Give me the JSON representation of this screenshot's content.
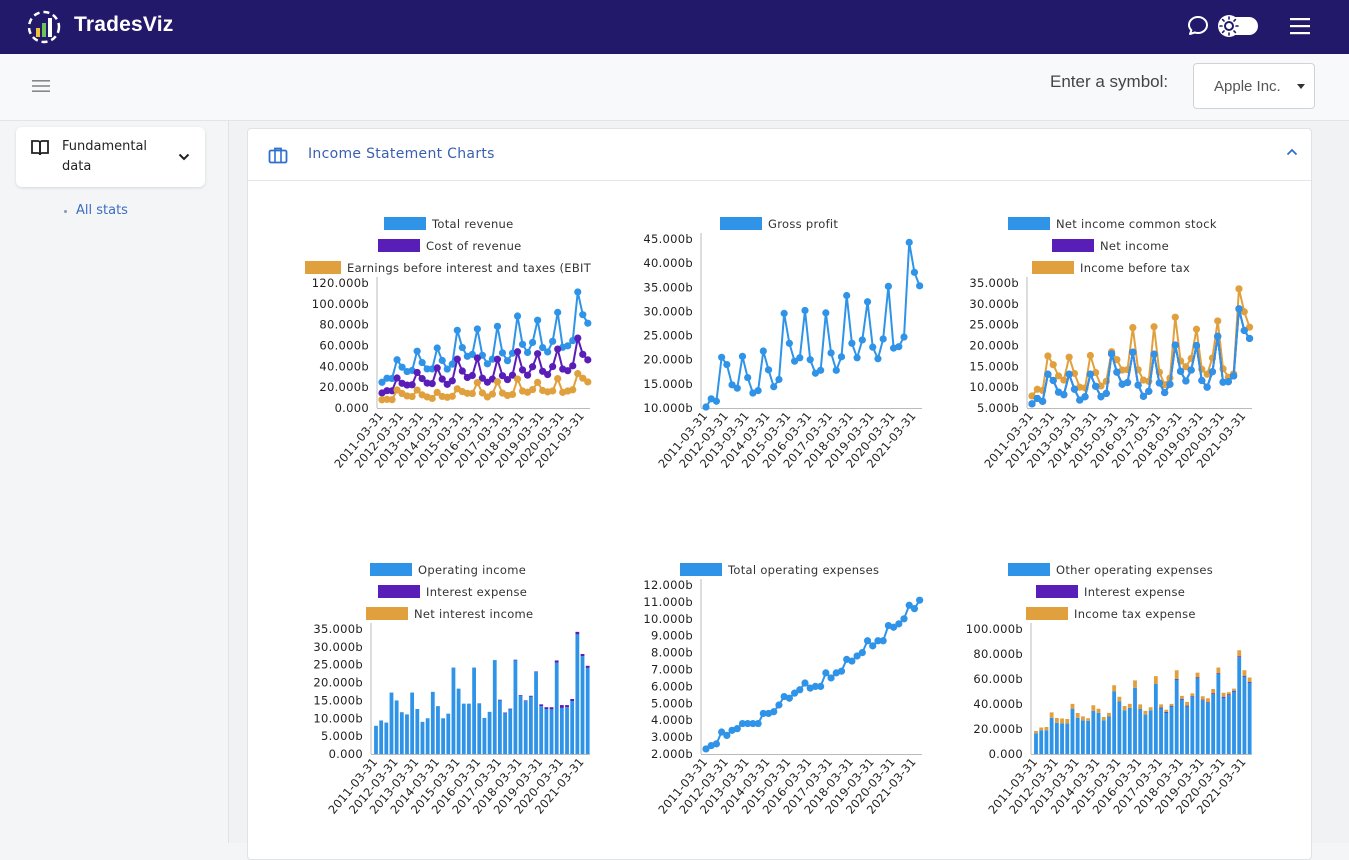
{
  "app": {
    "name": "TradesViz"
  },
  "header": {
    "symbol_label": "Enter a symbol:",
    "symbol_value": "Apple Inc."
  },
  "sidebar": {
    "section_label": "Fundamental data",
    "link": "All stats"
  },
  "panel": {
    "title": "Income Statement Charts"
  },
  "colors": {
    "blue": "#2f94e8",
    "purple": "#5a1eb8",
    "orange": "#e0a03e",
    "navy": "#23196b"
  },
  "chart_data": [
    {
      "type": "line",
      "legend": [
        "Total revenue",
        "Cost of revenue",
        "Earnings before interest and taxes (EBIT"
      ],
      "yticks": [
        "0.000",
        "20.000b",
        "40.000b",
        "60.000b",
        "80.000b",
        "100.000b",
        "120.000b"
      ],
      "ylim": [
        0,
        120
      ],
      "xticks": [
        "2011-03-31",
        "2012-03-31",
        "2013-03-31",
        "2014-03-31",
        "2015-03-31",
        "2016-03-31",
        "2017-03-31",
        "2018-03-31",
        "2019-03-31",
        "2020-03-31",
        "2021-03-31"
      ],
      "series": [
        {
          "name": "Total revenue",
          "values": [
            24.7,
            28.6,
            28.3,
            46.3,
            39.2,
            35.0,
            36.0,
            54.5,
            43.6,
            37.5,
            37.5,
            57.6,
            45.6,
            37.4,
            42.1,
            74.6,
            58.0,
            49.6,
            51.5,
            75.9,
            50.6,
            42.4,
            46.9,
            78.4,
            52.9,
            45.4,
            52.6,
            88.3,
            61.1,
            53.3,
            62.9,
            84.3,
            58.0,
            53.8,
            64.0,
            91.8,
            58.3,
            59.7,
            64.7,
            111.4,
            89.6,
            81.4
          ]
        },
        {
          "name": "Cost of revenue",
          "values": [
            14.4,
            16.6,
            16.5,
            28.8,
            23.7,
            22.0,
            22.3,
            34.1,
            28.2,
            23.9,
            23.4,
            38.5,
            27.7,
            22.7,
            26.1,
            46.9,
            35.5,
            29.3,
            31.2,
            48.0,
            28.6,
            24.8,
            27.8,
            46.8,
            31.0,
            27.3,
            31.5,
            54.0,
            36.5,
            31.5,
            39.6,
            52.1,
            35.2,
            32.1,
            39.8,
            56.6,
            37.4,
            35.8,
            40.5,
            67.1,
            51.5,
            46.2
          ]
        },
        {
          "name": "Earnings before interest and taxes (EBIT",
          "values": [
            7.9,
            8.3,
            8.0,
            17.3,
            13.9,
            11.6,
            11.0,
            17.2,
            12.6,
            10.6,
            9.2,
            15.0,
            11.1,
            10.3,
            11.2,
            18.4,
            15.8,
            14.1,
            13.9,
            24.4,
            14.4,
            10.6,
            13.4,
            25.2,
            14.3,
            12.0,
            13.0,
            27.8,
            16.3,
            15.1,
            17.7,
            24.6,
            16.8,
            15.5,
            16.4,
            28.2,
            15.0,
            16.3,
            17.5,
            33.0,
            28.6,
            25.0
          ]
        }
      ]
    },
    {
      "type": "line",
      "legend": [
        "Gross profit"
      ],
      "yticks": [
        "10.000b",
        "15.000b",
        "20.000b",
        "25.000b",
        "30.000b",
        "35.000b",
        "40.000b",
        "45.000b"
      ],
      "ylim": [
        10,
        45
      ],
      "xticks": [
        "2011-03-31",
        "2012-03-31",
        "2013-03-31",
        "2014-03-31",
        "2015-03-31",
        "2016-03-31",
        "2017-03-31",
        "2018-03-31",
        "2019-03-31",
        "2020-03-31",
        "2021-03-31"
      ],
      "series": [
        {
          "name": "Gross profit",
          "values": [
            10.2,
            11.9,
            11.4,
            20.5,
            19.0,
            14.8,
            14.1,
            20.7,
            16.3,
            13.1,
            13.6,
            21.8,
            17.9,
            14.4,
            15.9,
            29.6,
            23.4,
            19.7,
            20.4,
            30.2,
            20.0,
            17.2,
            17.8,
            29.7,
            21.4,
            17.8,
            20.6,
            33.3,
            23.4,
            20.4,
            24.1,
            32.0,
            22.6,
            20.2,
            24.3,
            35.2,
            22.4,
            22.7,
            24.7,
            44.3,
            38.1,
            35.3
          ]
        }
      ]
    },
    {
      "type": "line",
      "legend": [
        "Net income common stock",
        "Net income",
        "Income before tax"
      ],
      "yticks": [
        "5.000b",
        "10.000b",
        "15.000b",
        "20.000b",
        "25.000b",
        "30.000b",
        "35.000b"
      ],
      "ylim": [
        5,
        35
      ],
      "xticks": [
        "2011-03-31",
        "2012-03-31",
        "2013-03-31",
        "2014-03-31",
        "2015-03-31",
        "2016-03-31",
        "2017-03-31",
        "2018-03-31",
        "2019-03-31",
        "2020-03-31",
        "2021-03-31"
      ],
      "series": [
        {
          "name": "Income before tax",
          "values": [
            7.9,
            9.5,
            9.2,
            17.5,
            15.4,
            12.7,
            11.7,
            17.2,
            13.3,
            10.0,
            9.8,
            17.6,
            13.5,
            10.3,
            11.4,
            18.5,
            16.6,
            14.1,
            14.2,
            24.3,
            14.2,
            11.7,
            11.4,
            24.5,
            13.6,
            10.6,
            12.2,
            26.8,
            16.3,
            14.9,
            16.9,
            23.9,
            14.3,
            13.1,
            17.0,
            25.9,
            14.4,
            12.4,
            13.2,
            33.6,
            28.1,
            24.4
          ]
        },
        {
          "name": "Net income",
          "values": [
            6.0,
            7.3,
            6.6,
            13.1,
            11.6,
            8.8,
            8.2,
            13.1,
            9.5,
            6.9,
            7.7,
            13.1,
            10.2,
            7.7,
            8.5,
            18.0,
            13.6,
            10.7,
            11.1,
            18.4,
            10.5,
            7.8,
            9.0,
            17.9,
            11.0,
            8.7,
            10.7,
            20.1,
            13.8,
            11.5,
            14.1,
            20.0,
            11.6,
            10.0,
            13.7,
            22.2,
            11.2,
            11.3,
            12.7,
            28.8,
            23.6,
            21.7
          ]
        },
        {
          "name": "Net income common stock",
          "values": [
            6.0,
            7.3,
            6.6,
            13.1,
            11.6,
            8.8,
            8.2,
            13.1,
            9.5,
            6.9,
            7.7,
            13.1,
            10.2,
            7.7,
            8.5,
            18.0,
            13.6,
            10.7,
            11.1,
            18.4,
            10.5,
            7.8,
            9.0,
            17.9,
            11.0,
            8.7,
            10.7,
            20.1,
            13.8,
            11.5,
            14.1,
            20.0,
            11.6,
            10.0,
            13.7,
            22.2,
            11.2,
            11.3,
            12.7,
            28.8,
            23.6,
            21.7
          ]
        }
      ]
    },
    {
      "type": "bar",
      "stacked": true,
      "legend": [
        "Operating income",
        "Interest expense",
        "Net interest income"
      ],
      "yticks": [
        "0.000",
        "5.000b",
        "10.000b",
        "15.000b",
        "20.000b",
        "25.000b",
        "30.000b",
        "35.000b"
      ],
      "ylim": [
        0,
        35
      ],
      "xticks": [
        "2011-03-31",
        "2012-03-31",
        "2013-03-31",
        "2014-03-31",
        "2015-03-31",
        "2016-03-31",
        "2017-03-31",
        "2018-03-31",
        "2019-03-31",
        "2020-03-31",
        "2021-03-31"
      ],
      "series": [
        {
          "name": "Operating income",
          "values": [
            7.9,
            9.4,
            8.8,
            17.2,
            15.0,
            11.7,
            11.1,
            17.2,
            12.6,
            9.0,
            10.0,
            17.4,
            13.4,
            10.0,
            11.3,
            24.2,
            18.3,
            14.1,
            14.1,
            24.2,
            14.2,
            10.1,
            11.8,
            26.3,
            15.1,
            11.5,
            12.6,
            26.3,
            16.3,
            14.8,
            16.1,
            22.9,
            13.4,
            12.6,
            12.5,
            25.6,
            12.9,
            13.1,
            14.8,
            33.5,
            27.4,
            24.1
          ]
        },
        {
          "name": "Interest expense",
          "values": [
            0,
            0,
            0,
            0,
            0,
            0,
            0,
            0,
            0,
            0,
            0,
            0,
            0,
            0,
            0,
            0,
            0,
            0,
            0,
            0,
            0,
            0,
            0,
            0,
            0.1,
            0.1,
            0.1,
            0.1,
            0.2,
            0.2,
            0.2,
            0.2,
            0.5,
            0.5,
            0.6,
            0.6,
            0.8,
            0.6,
            0.6,
            0.7,
            0.6,
            0.6
          ]
        },
        {
          "name": "Net interest income",
          "values": [
            0,
            0,
            0,
            0,
            0,
            0,
            0,
            0,
            0,
            0,
            0,
            0,
            0,
            0,
            0,
            0,
            0,
            0,
            0,
            0,
            0,
            0,
            0,
            0,
            0,
            0,
            0,
            0,
            0,
            0,
            0,
            0,
            0,
            0,
            0,
            0,
            0,
            0,
            0,
            0,
            0,
            0
          ]
        }
      ]
    },
    {
      "type": "line",
      "legend": [
        "Total operating expenses"
      ],
      "yticks": [
        "2.000b",
        "3.000b",
        "4.000b",
        "5.000b",
        "6.000b",
        "7.000b",
        "8.000b",
        "9.000b",
        "10.000b",
        "11.000b",
        "12.000b"
      ],
      "ylim": [
        2,
        12
      ],
      "xticks": [
        "2011-03-31",
        "2012-03-31",
        "2013-03-31",
        "2014-03-31",
        "2015-03-31",
        "2016-03-31",
        "2017-03-31",
        "2018-03-31",
        "2019-03-31",
        "2020-03-31",
        "2021-03-31"
      ],
      "series": [
        {
          "name": "Total operating expenses",
          "values": [
            2.3,
            2.5,
            2.6,
            3.3,
            3.1,
            3.4,
            3.5,
            3.8,
            3.8,
            3.8,
            3.8,
            4.4,
            4.4,
            4.5,
            4.9,
            5.4,
            5.3,
            5.6,
            5.8,
            6.2,
            5.9,
            6.0,
            6.0,
            6.8,
            6.5,
            6.8,
            6.9,
            7.6,
            7.5,
            7.8,
            8.0,
            8.7,
            8.4,
            8.7,
            8.7,
            9.6,
            9.5,
            9.7,
            10.0,
            10.8,
            10.6,
            11.1
          ]
        }
      ]
    },
    {
      "type": "bar",
      "stacked": true,
      "legend": [
        "Other operating expenses",
        "Interest expense",
        "Income tax expense"
      ],
      "yticks": [
        "0.000",
        "20.000b",
        "40.000b",
        "60.000b",
        "80.000b",
        "100.000b"
      ],
      "ylim": [
        0,
        100
      ],
      "xticks": [
        "2011-03-31",
        "2012-03-31",
        "2013-03-31",
        "2014-03-31",
        "2015-03-31",
        "2016-03-31",
        "2017-03-31",
        "2018-03-31",
        "2019-03-31",
        "2020-03-31",
        "2021-03-31"
      ],
      "series": [
        {
          "name": "Other operating expenses",
          "values": [
            16.5,
            19.0,
            19.0,
            28.9,
            25.0,
            24.5,
            24.5,
            36.0,
            29.0,
            27.0,
            26.5,
            34.5,
            33.0,
            27.0,
            30.0,
            50.0,
            42.0,
            35.0,
            37.0,
            53.0,
            36.0,
            31.5,
            35.0,
            56.0,
            37.0,
            33.5,
            38.5,
            60.0,
            44.0,
            38.5,
            46.0,
            61.0,
            43.0,
            41.0,
            48.0,
            64.0,
            45.0,
            47.0,
            50.0,
            77.5,
            62.0,
            57.0
          ]
        },
        {
          "name": "Interest expense",
          "values": [
            0,
            0,
            0,
            0,
            0,
            0,
            0,
            0,
            0,
            0,
            0,
            0,
            0,
            0,
            0,
            0,
            0,
            0,
            0,
            0,
            0,
            0,
            0,
            0,
            0.1,
            0.1,
            0.1,
            0.1,
            0.2,
            0.2,
            0.2,
            0.2,
            0.5,
            0.5,
            0.6,
            0.6,
            0.8,
            0.6,
            0.6,
            0.7,
            0.6,
            0.6
          ]
        },
        {
          "name": "Income tax expense",
          "values": [
            1.9,
            2.2,
            2.6,
            4.4,
            3.8,
            3.9,
            3.5,
            4.1,
            3.8,
            3.1,
            2.1,
            4.5,
            3.2,
            2.6,
            2.9,
            5.0,
            3.8,
            3.4,
            3.1,
            5.9,
            3.7,
            3.0,
            2.4,
            6.3,
            2.6,
            1.8,
            1.5,
            6.9,
            2.3,
            3.0,
            2.3,
            3.9,
            2.7,
            3.1,
            3.4,
            4.6,
            3.2,
            1.9,
            1.7,
            4.8,
            4.4,
            3.6
          ]
        }
      ]
    }
  ]
}
